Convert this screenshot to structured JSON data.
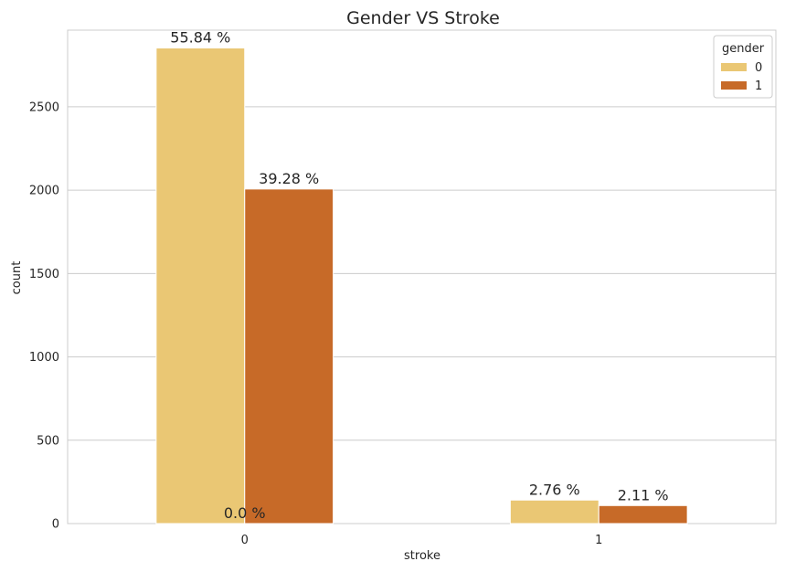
{
  "chart_data": {
    "type": "bar",
    "title": "Gender VS Stroke",
    "xlabel": "stroke",
    "ylabel": "count",
    "categories": [
      "0",
      "1"
    ],
    "ylim": [
      0,
      2960
    ],
    "yticks": [
      0,
      500,
      1000,
      1500,
      2000,
      2500
    ],
    "grid": true,
    "legend": {
      "title": "gender",
      "position": "top-right"
    },
    "series": [
      {
        "name": "0",
        "color": "#EAC774",
        "values": [
          2853,
          141
        ],
        "labels": [
          "55.84 %",
          "2.76 %"
        ]
      },
      {
        "name": "1",
        "color": "#C76A28",
        "values": [
          2007,
          108
        ],
        "labels": [
          "39.28 %",
          "2.11 %"
        ]
      }
    ],
    "extra_annotations": [
      {
        "text": "0.0 %",
        "category": "0",
        "value": 0
      }
    ]
  }
}
